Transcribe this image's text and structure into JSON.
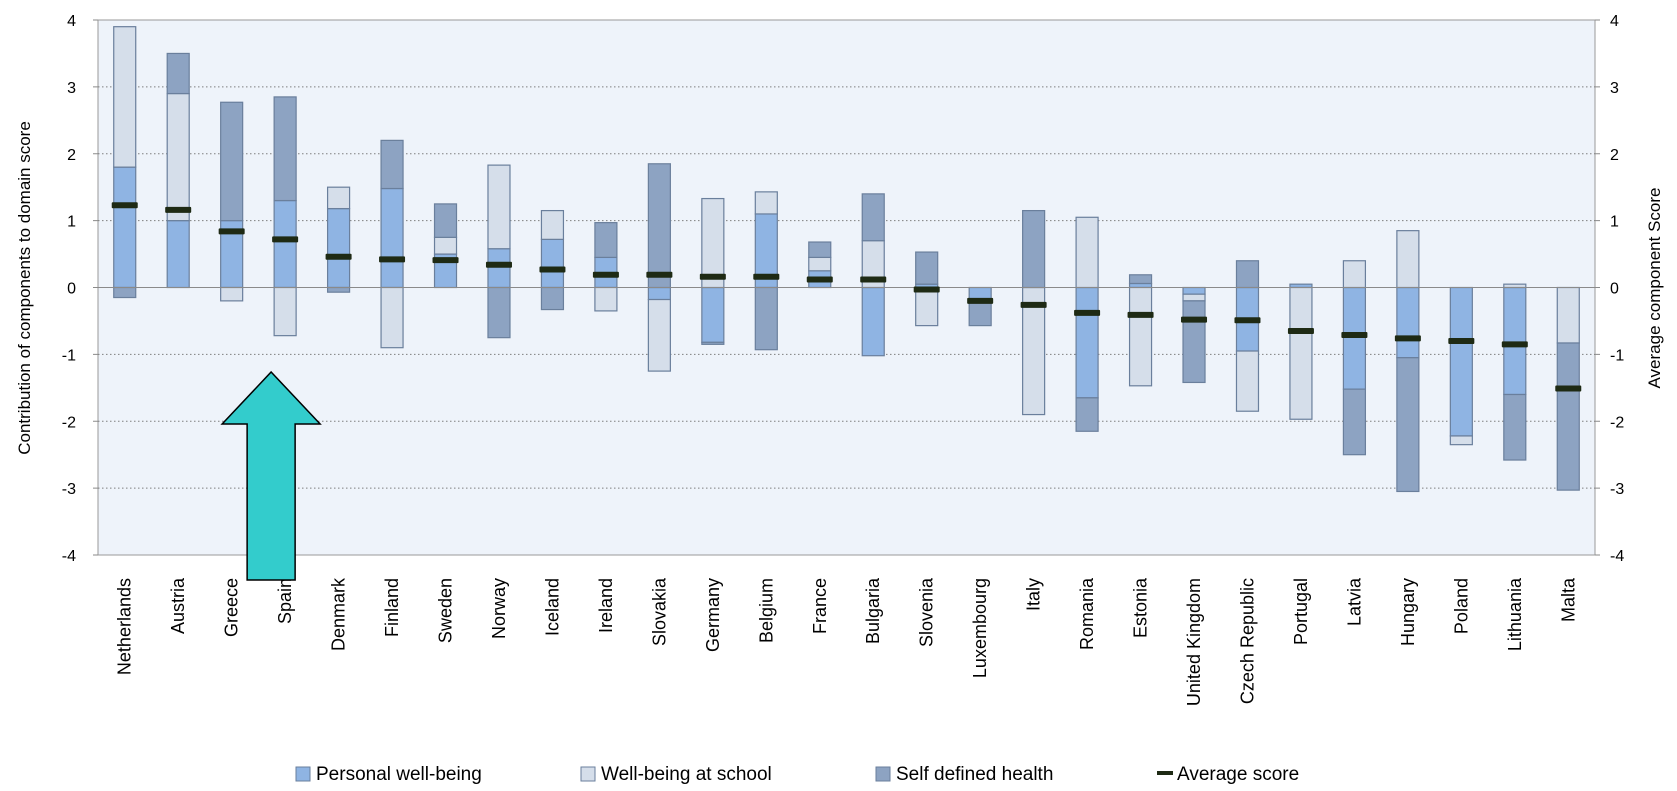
{
  "chart_data": {
    "type": "bar",
    "stacked": true,
    "title": "",
    "ylabel": "Contribution of components to domain score",
    "y2label": "Average component Score",
    "ylim": [
      -4,
      4
    ],
    "yticks": [
      4,
      3,
      2,
      1,
      0,
      -1,
      -2,
      -3,
      -4
    ],
    "grid": "horizontal-dotted",
    "legend_position": "bottom",
    "categories": [
      "Netherlands",
      "Austria",
      "Greece",
      "Spain",
      "Denmark",
      "Finland",
      "Sweden",
      "Norway",
      "Iceland",
      "Ireland",
      "Slovakia",
      "Germany",
      "Belgium",
      "France",
      "Bulgaria",
      "Slovenia",
      "Luxembourg",
      "Italy",
      "Romania",
      "Estonia",
      "United Kingdom",
      "Czech Republic",
      "Portugal",
      "Latvia",
      "Hungary",
      "Poland",
      "Lithuania",
      "Malta"
    ],
    "series": [
      {
        "name": "Personal well-being",
        "color": "#8fb4e3",
        "values": [
          1.8,
          1.0,
          1.0,
          1.3,
          1.18,
          1.48,
          0.5,
          0.58,
          0.72,
          0.45,
          -0.18,
          -0.82,
          1.1,
          0.25,
          -1.02,
          0.05,
          -0.2,
          0.0,
          -1.65,
          0.06,
          -0.1,
          -0.95,
          0.05,
          -1.52,
          -1.05,
          -2.22,
          -1.6,
          0.0
        ]
      },
      {
        "name": "Well-being at school",
        "color": "#d5deea",
        "values": [
          2.1,
          1.9,
          -0.2,
          -0.72,
          0.32,
          -0.9,
          0.25,
          1.25,
          0.43,
          -0.35,
          -1.07,
          1.33,
          0.33,
          0.2,
          0.7,
          -0.57,
          0.0,
          -1.9,
          1.05,
          -1.47,
          -0.1,
          -0.9,
          -1.97,
          0.4,
          0.85,
          -0.13,
          0.05,
          -0.83
        ]
      },
      {
        "name": "Self defined health",
        "color": "#8da3c2",
        "values": [
          -0.15,
          0.6,
          1.77,
          1.55,
          -0.07,
          0.72,
          0.5,
          -0.75,
          -0.33,
          0.52,
          1.85,
          -0.03,
          -0.93,
          0.23,
          0.7,
          0.48,
          -0.37,
          1.15,
          -0.5,
          0.13,
          -1.22,
          0.4,
          0.0,
          -0.98,
          -2.0,
          0.0,
          -0.98,
          -2.2
        ]
      }
    ],
    "average_score": {
      "name": "Average score",
      "color": "#1e2a14",
      "values": [
        1.23,
        1.16,
        0.84,
        0.72,
        0.46,
        0.42,
        0.41,
        0.34,
        0.27,
        0.19,
        0.19,
        0.16,
        0.16,
        0.12,
        0.12,
        -0.03,
        -0.2,
        -0.26,
        -0.38,
        -0.41,
        -0.48,
        -0.49,
        -0.65,
        -0.71,
        -0.76,
        -0.8,
        -0.85,
        -1.51
      ]
    },
    "annotation": {
      "type": "arrow-up",
      "color": "#33cccc",
      "target": "Spain"
    }
  }
}
